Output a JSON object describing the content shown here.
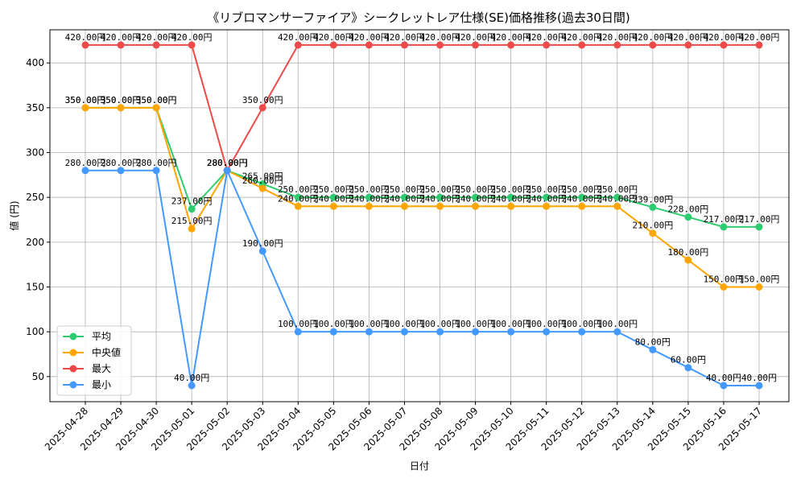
{
  "chart_data": {
    "type": "line",
    "title": "《リブロマンサーファイア》シークレットレア仕様(SE)価格推移(過去30日間)",
    "xlabel": "日付",
    "ylabel": "値 (円)",
    "ylim": [
      22,
      437
    ],
    "yticks": [
      50,
      100,
      150,
      200,
      250,
      300,
      350,
      400
    ],
    "grid": true,
    "legend_position": "lower-left",
    "label_suffix": "円",
    "categories": [
      "2025-04-28",
      "2025-04-29",
      "2025-04-30",
      "2025-05-01",
      "2025-05-02",
      "2025-05-03",
      "2025-05-04",
      "2025-05-05",
      "2025-05-06",
      "2025-05-07",
      "2025-05-08",
      "2025-05-09",
      "2025-05-10",
      "2025-05-11",
      "2025-05-12",
      "2025-05-13",
      "2025-05-14",
      "2025-05-15",
      "2025-05-16",
      "2025-05-17"
    ],
    "series": [
      {
        "name": "平均",
        "color": "#2ecc71",
        "values": [
          350,
          350,
          350,
          237,
          280,
          265,
          250,
          250,
          250,
          250,
          250,
          250,
          250,
          250,
          250,
          250,
          239,
          228,
          217,
          217
        ]
      },
      {
        "name": "中央値",
        "color": "#ffa500",
        "values": [
          350,
          350,
          350,
          215,
          280,
          260,
          240,
          240,
          240,
          240,
          240,
          240,
          240,
          240,
          240,
          240,
          210,
          180,
          150,
          150
        ]
      },
      {
        "name": "最大",
        "color": "#ef4a4a",
        "values": [
          420,
          420,
          420,
          420,
          280,
          350,
          420,
          420,
          420,
          420,
          420,
          420,
          420,
          420,
          420,
          420,
          420,
          420,
          420,
          420
        ]
      },
      {
        "name": "最小",
        "color": "#4499ff",
        "values": [
          280,
          280,
          280,
          40,
          280,
          190,
          100,
          100,
          100,
          100,
          100,
          100,
          100,
          100,
          100,
          100,
          80,
          60,
          40,
          40
        ]
      }
    ]
  }
}
